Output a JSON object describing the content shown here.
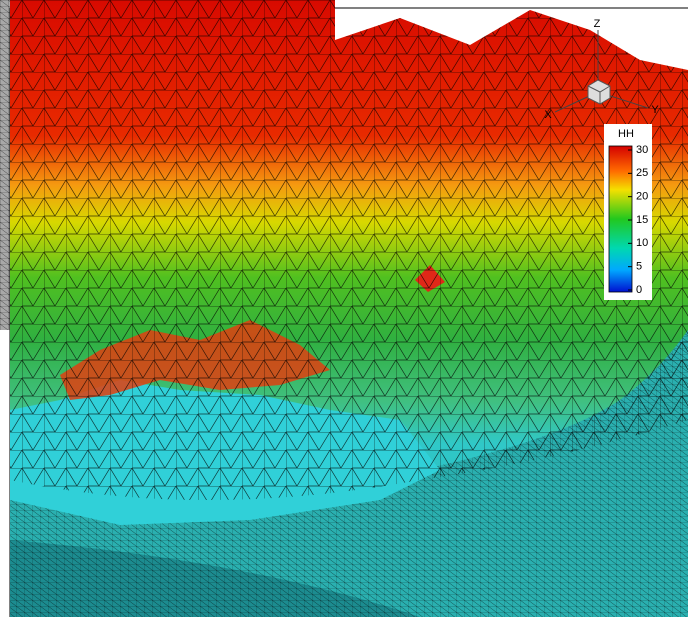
{
  "colorbar": {
    "title": "HH",
    "ticks": [
      30,
      25,
      20,
      15,
      10,
      5,
      0
    ]
  },
  "axes": {
    "x": "X",
    "y": "Y",
    "z": "Z"
  }
}
